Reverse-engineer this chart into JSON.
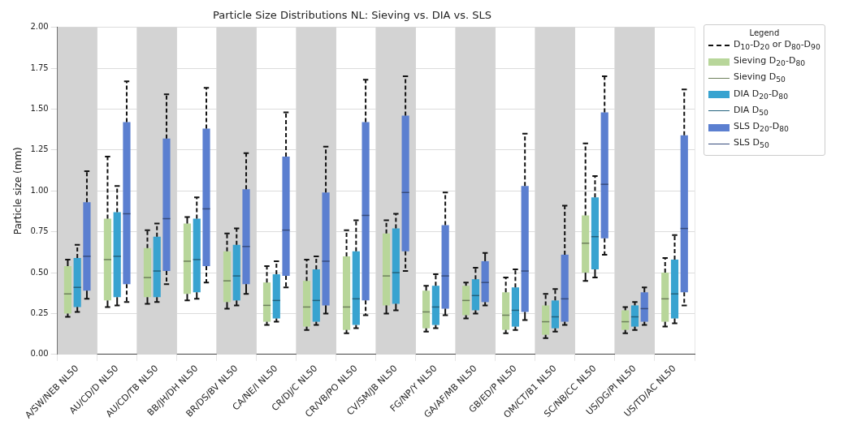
{
  "chart_data": {
    "type": "box",
    "title": "Particle Size Distributions NL: Sieving vs. DIA vs. SLS",
    "ylabel": "Particle size (mm)",
    "legend_title": "Legend",
    "legend": "top right",
    "grid": true,
    "categories": [
      "A/SW/NEB NL50",
      "AU/CD/D NL50",
      "AU/CD/TB NL50",
      "BB/JH/DH NL50",
      "BR/DS/BV NL50",
      "CA/NE/I NL50",
      "CR/DJ/C NL50",
      "CR/VB/PO NL50",
      "CV/SM/JB NL50",
      "FG/NP/Y NL50",
      "GA/AF/MB NL50",
      "GB/ED/P NL50",
      "OM/CT/B1 NL50",
      "SC/NB/CC NL50",
      "US/DG/PI NL50",
      "US/TD/AC NL50"
    ],
    "ylim": [
      0,
      2
    ],
    "yticks": [
      {
        "value": 0,
        "label": "0.00"
      },
      {
        "value": 0.25,
        "label": "0.25"
      },
      {
        "value": 0.5,
        "label": "0.50"
      },
      {
        "value": 0.75,
        "label": "0.75"
      },
      {
        "value": 1,
        "label": "1.00"
      },
      {
        "value": 1.25,
        "label": "1.25"
      },
      {
        "value": 1.5,
        "label": "1.50"
      },
      {
        "value": 1.75,
        "label": "1.75"
      },
      {
        "value": 2,
        "label": "2.00"
      }
    ],
    "annotations": [
      "D$_{10}$-D$_{20}$ or D$_{80}$-D$_{90}$",
      "Sieving D$_{50}$",
      "DIA D$_{50}$",
      "SLS D$_{50}$"
    ],
    "bands": [
      {
        "axis": "x",
        "from": "A/SW/NEB NL50",
        "to": "A/SW/NEB NL50",
        "color": "#d3d3d3"
      },
      {
        "axis": "x",
        "from": "AU/CD/TB NL50",
        "to": "AU/CD/TB NL50",
        "color": "#d3d3d3"
      },
      {
        "axis": "x",
        "from": "BR/DS/BV NL50",
        "to": "BR/DS/BV NL50",
        "color": "#d3d3d3"
      },
      {
        "axis": "x",
        "from": "CR/DJ/C NL50",
        "to": "CR/DJ/C NL50",
        "color": "#d3d3d3"
      },
      {
        "axis": "x",
        "from": "CV/SM/JB NL50",
        "to": "CV/SM/JB NL50",
        "color": "#d3d3d3"
      },
      {
        "axis": "x",
        "from": "GA/AF/MB NL50",
        "to": "GA/AF/MB NL50",
        "color": "#d3d3d3"
      },
      {
        "axis": "x",
        "from": "OM/CT/B1 NL50",
        "to": "OM/CT/B1 NL50",
        "color": "#d3d3d3"
      },
      {
        "axis": "x",
        "from": "US/DG/PI NL50",
        "to": "US/DG/PI NL50",
        "color": "#d3d3d3"
      }
    ],
    "series": [
      {
        "name": "Sieving D$_{20}$-D$_{80}$",
        "color": "#b8d69a",
        "boxes": [
          {
            "low": 0.23,
            "q1": 0.25,
            "median": 0.37,
            "q3": 0.54,
            "high": 0.58
          },
          {
            "low": 0.29,
            "q1": 0.33,
            "median": 0.58,
            "q3": 0.83,
            "high": 1.21
          },
          {
            "low": 0.31,
            "q1": 0.35,
            "median": 0.47,
            "q3": 0.65,
            "high": 0.76
          },
          {
            "low": 0.33,
            "q1": 0.37,
            "median": 0.57,
            "q3": 0.8,
            "high": 0.84
          },
          {
            "low": 0.28,
            "q1": 0.32,
            "median": 0.45,
            "q3": 0.63,
            "high": 0.74
          },
          {
            "low": 0.18,
            "q1": 0.2,
            "median": 0.3,
            "q3": 0.44,
            "high": 0.54
          },
          {
            "low": 0.15,
            "q1": 0.17,
            "median": 0.29,
            "q3": 0.45,
            "high": 0.58
          },
          {
            "low": 0.13,
            "q1": 0.15,
            "median": 0.29,
            "q3": 0.6,
            "high": 0.76
          },
          {
            "low": 0.25,
            "q1": 0.3,
            "median": 0.48,
            "q3": 0.74,
            "high": 0.82
          },
          {
            "low": 0.14,
            "q1": 0.16,
            "median": 0.26,
            "q3": 0.39,
            "high": 0.42
          },
          {
            "low": 0.22,
            "q1": 0.24,
            "median": 0.33,
            "q3": 0.42,
            "high": 0.44
          },
          {
            "low": 0.13,
            "q1": 0.15,
            "median": 0.24,
            "q3": 0.38,
            "high": 0.47
          },
          {
            "low": 0.1,
            "q1": 0.12,
            "median": 0.2,
            "q3": 0.3,
            "high": 0.37
          },
          {
            "low": 0.45,
            "q1": 0.5,
            "median": 0.68,
            "q3": 0.85,
            "high": 1.29
          },
          {
            "low": 0.13,
            "q1": 0.15,
            "median": 0.2,
            "q3": 0.27,
            "high": 0.29
          },
          {
            "low": 0.17,
            "q1": 0.2,
            "median": 0.34,
            "q3": 0.5,
            "high": 0.59
          }
        ]
      },
      {
        "name": "DIA D$_{20}$-D$_{80}$",
        "color": "#38a3d0",
        "boxes": [
          {
            "low": 0.26,
            "q1": 0.29,
            "median": 0.41,
            "q3": 0.59,
            "high": 0.67
          },
          {
            "low": 0.3,
            "q1": 0.35,
            "median": 0.6,
            "q3": 0.87,
            "high": 1.03
          },
          {
            "low": 0.32,
            "q1": 0.35,
            "median": 0.51,
            "q3": 0.72,
            "high": 0.8
          },
          {
            "low": 0.34,
            "q1": 0.38,
            "median": 0.58,
            "q3": 0.83,
            "high": 0.96
          },
          {
            "low": 0.3,
            "q1": 0.33,
            "median": 0.48,
            "q3": 0.67,
            "high": 0.77
          },
          {
            "low": 0.2,
            "q1": 0.22,
            "median": 0.33,
            "q3": 0.49,
            "high": 0.57
          },
          {
            "low": 0.18,
            "q1": 0.2,
            "median": 0.33,
            "q3": 0.52,
            "high": 0.6
          },
          {
            "low": 0.16,
            "q1": 0.18,
            "median": 0.34,
            "q3": 0.63,
            "high": 0.82
          },
          {
            "low": 0.27,
            "q1": 0.31,
            "median": 0.5,
            "q3": 0.77,
            "high": 0.86
          },
          {
            "low": 0.16,
            "q1": 0.18,
            "median": 0.29,
            "q3": 0.42,
            "high": 0.49
          },
          {
            "low": 0.25,
            "q1": 0.27,
            "median": 0.36,
            "q3": 0.46,
            "high": 0.53
          },
          {
            "low": 0.15,
            "q1": 0.17,
            "median": 0.27,
            "q3": 0.41,
            "high": 0.52
          },
          {
            "low": 0.14,
            "q1": 0.16,
            "median": 0.23,
            "q3": 0.33,
            "high": 0.4
          },
          {
            "low": 0.47,
            "q1": 0.52,
            "median": 0.72,
            "q3": 0.96,
            "high": 1.09
          },
          {
            "low": 0.15,
            "q1": 0.17,
            "median": 0.23,
            "q3": 0.3,
            "high": 0.32
          },
          {
            "low": 0.19,
            "q1": 0.22,
            "median": 0.37,
            "q3": 0.58,
            "high": 0.73
          }
        ]
      },
      {
        "name": "SLS D$_{20}$-D$_{80}$",
        "color": "#5b7fd0",
        "boxes": [
          {
            "low": 0.34,
            "q1": 0.39,
            "median": 0.6,
            "q3": 0.93,
            "high": 1.12
          },
          {
            "low": 0.32,
            "q1": 0.43,
            "median": 0.86,
            "q3": 1.42,
            "high": 1.67
          },
          {
            "low": 0.43,
            "q1": 0.51,
            "median": 0.83,
            "q3": 1.32,
            "high": 1.59
          },
          {
            "low": 0.44,
            "q1": 0.54,
            "median": 0.89,
            "q3": 1.38,
            "high": 1.63
          },
          {
            "low": 0.37,
            "q1": 0.43,
            "median": 0.66,
            "q3": 1.01,
            "high": 1.23
          },
          {
            "low": 0.41,
            "q1": 0.48,
            "median": 0.76,
            "q3": 1.21,
            "high": 1.48
          },
          {
            "low": 0.25,
            "q1": 0.3,
            "median": 0.57,
            "q3": 0.99,
            "high": 1.27
          },
          {
            "low": 0.24,
            "q1": 0.33,
            "median": 0.85,
            "q3": 1.42,
            "high": 1.68
          },
          {
            "low": 0.51,
            "q1": 0.63,
            "median": 0.99,
            "q3": 1.46,
            "high": 1.7
          },
          {
            "low": 0.24,
            "q1": 0.28,
            "median": 0.48,
            "q3": 0.79,
            "high": 0.99
          },
          {
            "low": 0.3,
            "q1": 0.32,
            "median": 0.44,
            "q3": 0.57,
            "high": 0.62
          },
          {
            "low": 0.21,
            "q1": 0.26,
            "median": 0.51,
            "q3": 1.03,
            "high": 1.35
          },
          {
            "low": 0.18,
            "q1": 0.2,
            "median": 0.34,
            "q3": 0.61,
            "high": 0.91
          },
          {
            "low": 0.61,
            "q1": 0.71,
            "median": 1.04,
            "q3": 1.48,
            "high": 1.7
          },
          {
            "low": 0.18,
            "q1": 0.2,
            "median": 0.28,
            "q3": 0.38,
            "high": 0.41
          },
          {
            "low": 0.3,
            "q1": 0.38,
            "median": 0.77,
            "q3": 1.34,
            "high": 1.62
          }
        ]
      }
    ]
  }
}
